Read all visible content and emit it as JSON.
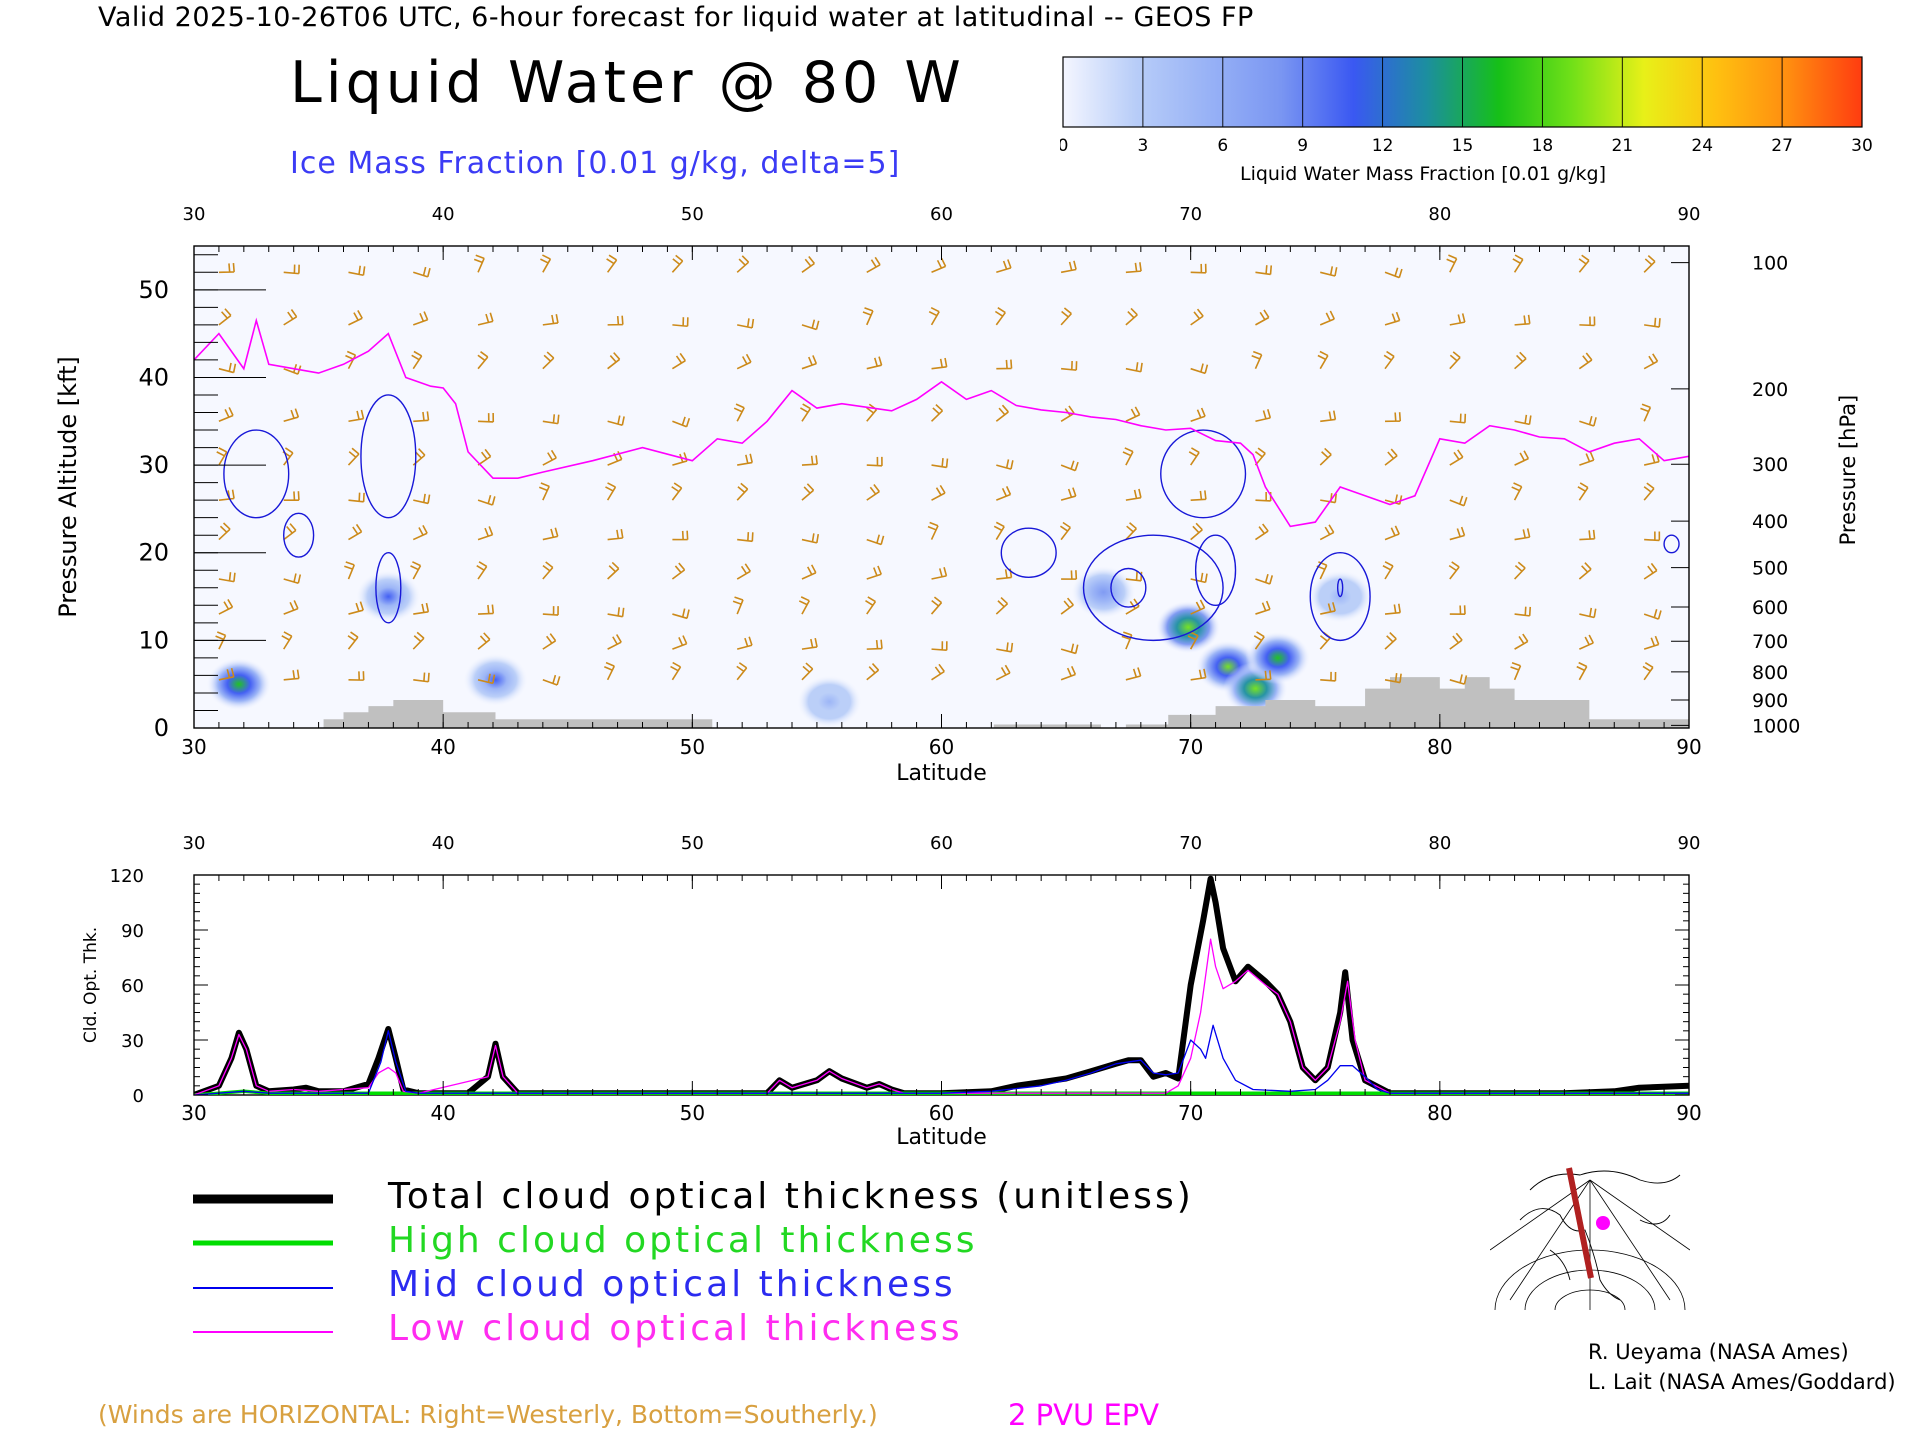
{
  "header": {
    "title": "Valid 2025-10-26T06 UTC, 6-hour forecast for liquid water at latitudinal -- GEOS FP",
    "main_title": "Liquid Water @ 80 W",
    "ice_label": "Ice Mass Fraction [0.01 g/kg, delta=5]"
  },
  "colorbar": {
    "title": "Liquid Water Mass Fraction [0.01 g/kg]",
    "ticks": [
      "0",
      "3",
      "6",
      "9",
      "12",
      "15",
      "18",
      "21",
      "24",
      "27",
      "30"
    ],
    "colors": [
      "#f4f6ff",
      "#b8cdf8",
      "#98b2f6",
      "#7a96f2",
      "#3a58f2",
      "#1c8ea0",
      "#16c018",
      "#70e018",
      "#e8f018",
      "#ffc010",
      "#ff8c10",
      "#ff3c10"
    ]
  },
  "colors": {
    "wind_barb": "#cc8a1a",
    "epv_line": "#ff00ff",
    "ice_contour": "#1818d8",
    "terrain": "#c0c0c0",
    "total": "#000000",
    "high": "#00dd00",
    "mid": "#0000ee",
    "low": "#ff00ff"
  },
  "chart_data": [
    {
      "type": "heatmap",
      "title": "Liquid Water @ 80 W",
      "xlabel": "Latitude",
      "ylabel": "Pressure Altitude [kft]",
      "y2label": "Pressure [hPa]",
      "xlim": [
        30,
        90
      ],
      "ylim": [
        0,
        55
      ],
      "x_ticks": [
        "30",
        "40",
        "50",
        "60",
        "70",
        "80",
        "90"
      ],
      "y_ticks": [
        "0",
        "10",
        "20",
        "30",
        "40",
        "50"
      ],
      "pressure_ticks": [
        {
          "label": "100",
          "kft": 53.1
        },
        {
          "label": "200",
          "kft": 38.7
        },
        {
          "label": "300",
          "kft": 30.1
        },
        {
          "label": "400",
          "kft": 23.6
        },
        {
          "label": "500",
          "kft": 18.3
        },
        {
          "label": "600",
          "kft": 13.8
        },
        {
          "label": "700",
          "kft": 9.9
        },
        {
          "label": "800",
          "kft": 6.4
        },
        {
          "label": "900",
          "kft": 3.2
        },
        {
          "label": "1000",
          "kft": 0.3
        }
      ],
      "liquid_water_blobs": [
        {
          "lat": 31.8,
          "kft": 5.0,
          "peak": 16
        },
        {
          "lat": 37.8,
          "kft": 15.0,
          "peak": 10
        },
        {
          "lat": 42.1,
          "kft": 5.5,
          "peak": 10
        },
        {
          "lat": 55.5,
          "kft": 3.0,
          "peak": 5
        },
        {
          "lat": 66.5,
          "kft": 15.5,
          "peak": 8
        },
        {
          "lat": 69.9,
          "kft": 11.5,
          "peak": 20
        },
        {
          "lat": 71.5,
          "kft": 7.0,
          "peak": 18
        },
        {
          "lat": 72.6,
          "kft": 4.5,
          "peak": 19
        },
        {
          "lat": 73.5,
          "kft": 8.0,
          "peak": 17
        },
        {
          "lat": 76.0,
          "kft": 15.0,
          "peak": 6
        }
      ],
      "epv_2pvu_kft": {
        "lat": [
          30,
          31,
          32,
          32.5,
          33,
          34,
          35,
          36,
          37,
          37.8,
          38.5,
          39.5,
          40,
          40.5,
          41,
          42,
          43,
          44,
          46,
          48,
          50,
          51,
          52,
          53,
          54,
          55,
          56,
          58,
          59,
          60,
          61,
          62,
          63,
          64,
          65,
          66,
          67,
          68,
          69,
          70,
          71,
          72,
          72.5,
          73,
          74,
          75,
          76,
          77,
          78,
          79,
          80,
          81,
          82,
          83,
          84,
          85,
          86,
          87,
          88,
          89,
          90
        ],
        "kft": [
          42,
          45,
          41,
          46.5,
          41.5,
          41,
          40.5,
          41.5,
          43,
          45,
          40,
          39,
          38.8,
          37,
          31.5,
          28.5,
          28.5,
          29.2,
          30.5,
          32,
          30.5,
          33,
          32.5,
          35,
          38.5,
          36.5,
          37,
          36.2,
          37.5,
          39.5,
          37.5,
          38.5,
          36.8,
          36.3,
          36,
          35.5,
          35.2,
          34.5,
          34,
          34.2,
          32.8,
          32.5,
          31.2,
          27.5,
          23,
          23.5,
          27.5,
          26.5,
          25.5,
          26.5,
          33,
          32.5,
          34.5,
          34,
          33.2,
          33,
          31.5,
          32.5,
          33,
          30.5,
          31
        ]
      },
      "ice_contour_level": 5,
      "terrain_kft": {
        "lat": [
          30,
          35.2,
          35.2,
          36,
          36,
          37,
          37,
          38,
          38,
          40,
          40,
          42.1,
          42.1,
          50.8,
          50.8,
          62.1,
          62.1,
          66.4,
          66.4,
          67.4,
          67.4,
          69.1,
          69.1,
          71,
          71,
          73,
          73,
          75,
          75,
          77,
          77,
          78,
          78,
          80,
          80,
          81,
          81,
          82,
          82,
          83,
          83,
          86,
          86,
          90
        ],
        "kft": [
          0,
          0,
          1.0,
          1.0,
          1.8,
          1.8,
          2.5,
          2.5,
          3.2,
          3.2,
          1.8,
          1.8,
          1.0,
          1.0,
          0,
          0,
          0.4,
          0.4,
          0,
          0,
          0.4,
          0.4,
          1.5,
          1.5,
          2.5,
          2.5,
          3.2,
          3.2,
          2.5,
          2.5,
          4.5,
          4.5,
          5.8,
          5.8,
          4.5,
          4.5,
          5.8,
          5.8,
          4.5,
          4.5,
          3.2,
          3.2,
          1.0,
          1.0
        ]
      }
    },
    {
      "type": "line",
      "xlabel": "Latitude",
      "ylabel": "Cld. Opt. Thk.",
      "xlim": [
        30,
        90
      ],
      "ylim": [
        0,
        120
      ],
      "x_ticks": [
        "30",
        "40",
        "50",
        "60",
        "70",
        "80",
        "90"
      ],
      "y_ticks": [
        "0",
        "30",
        "60",
        "90",
        "120"
      ],
      "series": [
        {
          "name": "Total cloud optical thickness (unitless)",
          "color": "#000000",
          "x": [
            30,
            31,
            31.5,
            31.8,
            32.1,
            32.5,
            33,
            34,
            34.5,
            35,
            36,
            37,
            37.4,
            37.8,
            38.1,
            38.4,
            39,
            40,
            41,
            41.8,
            42.1,
            42.4,
            43,
            50,
            53,
            53.5,
            54,
            55,
            55.5,
            56,
            57,
            57.5,
            58,
            58.5,
            60,
            62,
            63,
            64,
            65,
            66,
            67,
            67.5,
            68,
            68.5,
            69,
            69.5,
            70,
            70.5,
            70.8,
            71,
            71.3,
            71.8,
            72.3,
            73,
            73.5,
            74,
            74.5,
            75,
            75.5,
            76,
            76.2,
            76.5,
            77,
            78,
            80,
            85,
            87,
            88,
            90
          ],
          "y": [
            0,
            5,
            20,
            34,
            25,
            5,
            2,
            3,
            4,
            2,
            2,
            6,
            20,
            36,
            20,
            3,
            1,
            1,
            1,
            10,
            28,
            10,
            1,
            1,
            1,
            8,
            4,
            8,
            13,
            9,
            4,
            6,
            3,
            1,
            1,
            2,
            5,
            7,
            9,
            13,
            17,
            19,
            19,
            10,
            12,
            9,
            60,
            95,
            118,
            105,
            80,
            62,
            70,
            62,
            55,
            40,
            15,
            8,
            15,
            45,
            67,
            30,
            8,
            1,
            1,
            1,
            2,
            4,
            5
          ]
        },
        {
          "name": "High cloud optical thickness",
          "color": "#00dd00",
          "x": [
            30,
            31,
            32,
            33,
            40,
            50,
            60,
            70,
            75,
            80,
            90
          ],
          "y": [
            0,
            1,
            2,
            1,
            1,
            1,
            1,
            1,
            1,
            1,
            1
          ]
        },
        {
          "name": "Mid cloud optical thickness",
          "color": "#0000ee",
          "x": [
            30,
            31,
            32,
            33,
            37,
            37.5,
            37.8,
            38.1,
            38.5,
            39,
            60,
            62,
            64,
            65,
            66,
            67,
            68,
            68.5,
            69,
            69.5,
            70,
            70.4,
            70.6,
            70.9,
            71.3,
            71.8,
            72.5,
            74,
            75,
            75.5,
            76,
            76.5,
            77,
            77.5,
            78,
            80,
            90
          ],
          "y": [
            0,
            1,
            2,
            1,
            1,
            18,
            35,
            18,
            2,
            1,
            1,
            2,
            5,
            8,
            12,
            17,
            19,
            12,
            11,
            12,
            30,
            25,
            20,
            38,
            20,
            8,
            3,
            2,
            3,
            8,
            16,
            16,
            10,
            3,
            1,
            1,
            1
          ]
        },
        {
          "name": "Low cloud optical thickness",
          "color": "#ff00ff",
          "x": [
            30,
            31,
            31.5,
            31.8,
            32.1,
            32.5,
            33,
            34,
            35,
            37,
            37.4,
            37.8,
            38.1,
            38.4,
            39,
            41.8,
            42.1,
            42.4,
            43,
            53,
            53.5,
            54,
            55,
            55.5,
            56,
            57,
            57.5,
            58,
            58.5,
            60,
            63,
            64,
            66,
            67,
            68,
            69,
            69.5,
            70,
            70.4,
            70.8,
            71,
            71.3,
            71.8,
            72.3,
            73,
            73.5,
            74,
            74.5,
            75,
            75.5,
            76,
            76.3,
            76.6,
            77,
            78,
            80,
            90
          ],
          "y": [
            0,
            5,
            20,
            33,
            25,
            5,
            2,
            3,
            2,
            4,
            12,
            15,
            12,
            2,
            1,
            10,
            27,
            10,
            1,
            1,
            8,
            4,
            8,
            13,
            9,
            4,
            6,
            3,
            1,
            1,
            1,
            1,
            1,
            1,
            1,
            1,
            5,
            20,
            45,
            85,
            70,
            58,
            62,
            68,
            60,
            55,
            40,
            15,
            8,
            15,
            40,
            62,
            30,
            8,
            1,
            1,
            1
          ]
        }
      ]
    }
  ],
  "legend": {
    "total": "Total cloud optical thickness (unitless)",
    "high": "High cloud optical thickness",
    "mid": "Mid cloud optical thickness",
    "low": "Low cloud optical thickness"
  },
  "footer": {
    "winds_note": "(Winds are HORIZONTAL: Right=Westerly, Bottom=Southerly.)",
    "pvu_label": "2 PVU EPV",
    "credit1": "R. Ueyama (NASA Ames)",
    "credit2": "L. Lait (NASA Ames/Goddard)"
  }
}
